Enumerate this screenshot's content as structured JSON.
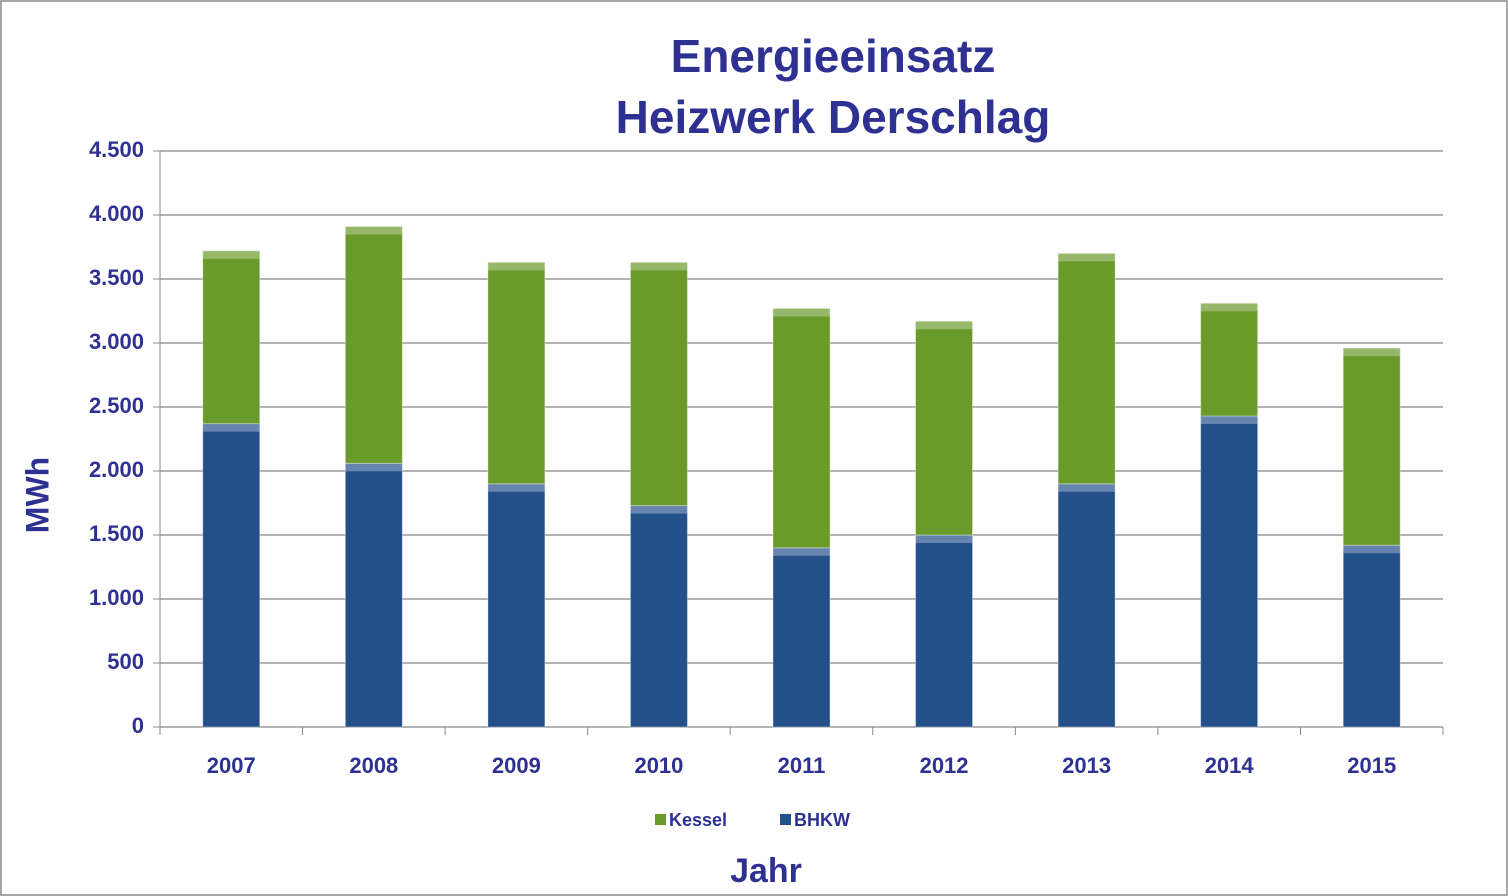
{
  "chart_data": {
    "type": "stacked_bar",
    "title": [
      "Energieeinsatz",
      "Heizwerk Derschlag"
    ],
    "x_label": "Jahr",
    "y_label": "MWh",
    "categories": [
      "2007",
      "2008",
      "2009",
      "2010",
      "2011",
      "2012",
      "2013",
      "2014",
      "2015"
    ],
    "series": [
      {
        "name": "BHKW",
        "color": "#24508a",
        "values": [
          2370,
          2060,
          1900,
          1730,
          1400,
          1500,
          1900,
          2430,
          1420
        ]
      },
      {
        "name": "Kessel",
        "color": "#6a9a2a",
        "values": [
          1350,
          1850,
          1730,
          1900,
          1870,
          1670,
          1800,
          880,
          1540
        ]
      }
    ],
    "ylim": [
      0,
      4500
    ],
    "yticks": [
      0,
      500,
      {
        "value": 1000,
        "label": "1.000"
      },
      {
        "value": 1500,
        "label": "1.500"
      },
      {
        "value": 2000,
        "label": "2.000"
      },
      {
        "value": 2500,
        "label": "2.500"
      },
      {
        "value": 3000,
        "label": "3.000"
      },
      {
        "value": 3500,
        "label": "3.500"
      },
      {
        "value": 4000,
        "label": "4.000"
      },
      {
        "value": 4500,
        "label": "4.500"
      }
    ],
    "grid": true,
    "legend": "bottom"
  }
}
